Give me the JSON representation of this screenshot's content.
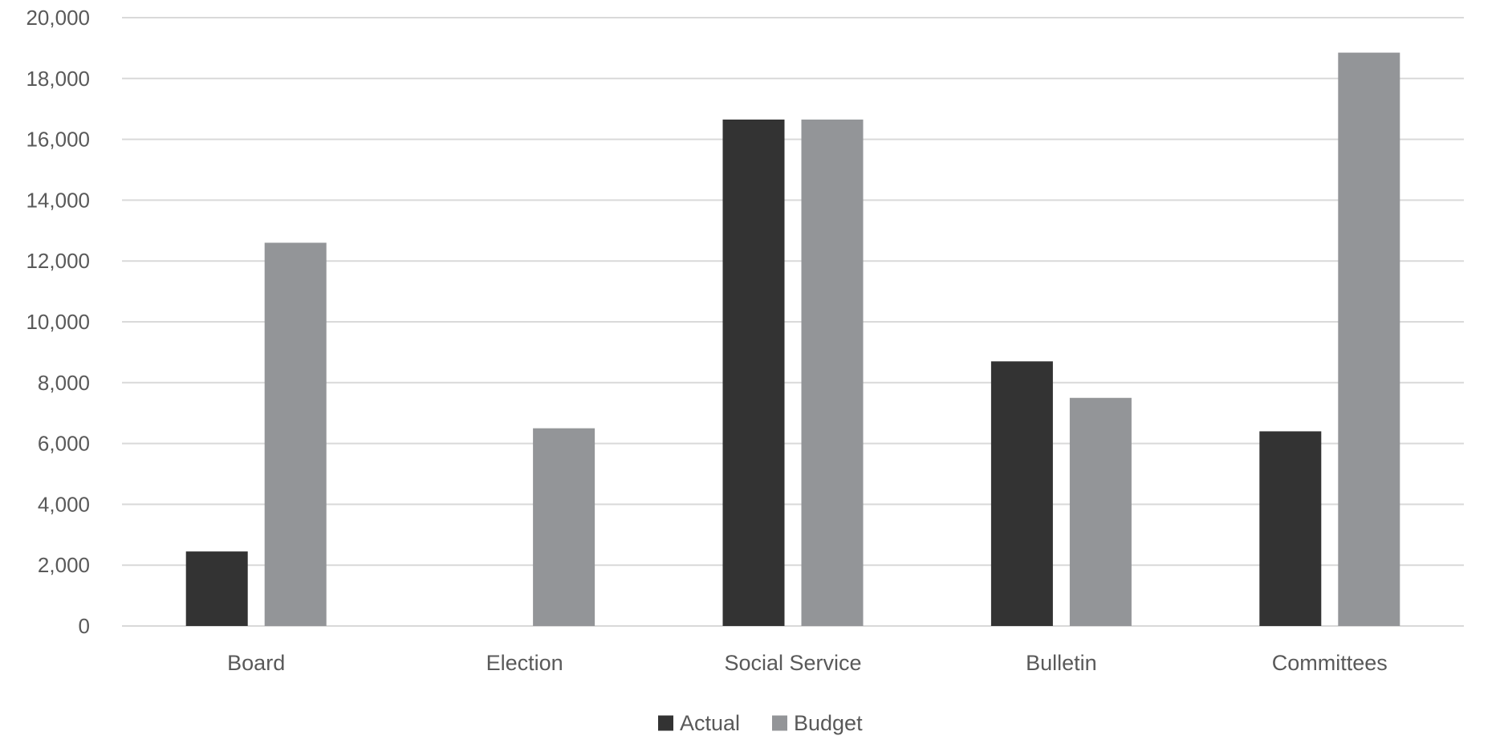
{
  "chart_data": {
    "type": "bar",
    "categories": [
      "Board",
      "Election",
      "Social Service",
      "Bulletin",
      "Committees"
    ],
    "series": [
      {
        "name": "Actual",
        "values": [
          2450,
          0,
          16650,
          8700,
          6400
        ],
        "color": "#333333"
      },
      {
        "name": "Budget",
        "values": [
          12600,
          6500,
          16650,
          7500,
          18850
        ],
        "color": "#939598"
      }
    ],
    "yticks": [
      0,
      2000,
      4000,
      6000,
      8000,
      10000,
      12000,
      14000,
      16000,
      18000,
      20000
    ],
    "ytick_labels": [
      "0",
      "2,000",
      "4,000",
      "6,000",
      "8,000",
      "10,000",
      "12,000",
      "14,000",
      "16,000",
      "18,000",
      "20,000"
    ],
    "ylim": [
      0,
      20000
    ],
    "grid": true,
    "legend_position": "bottom",
    "gridline_color": "#d9d9d9",
    "text_color": "#595959"
  }
}
